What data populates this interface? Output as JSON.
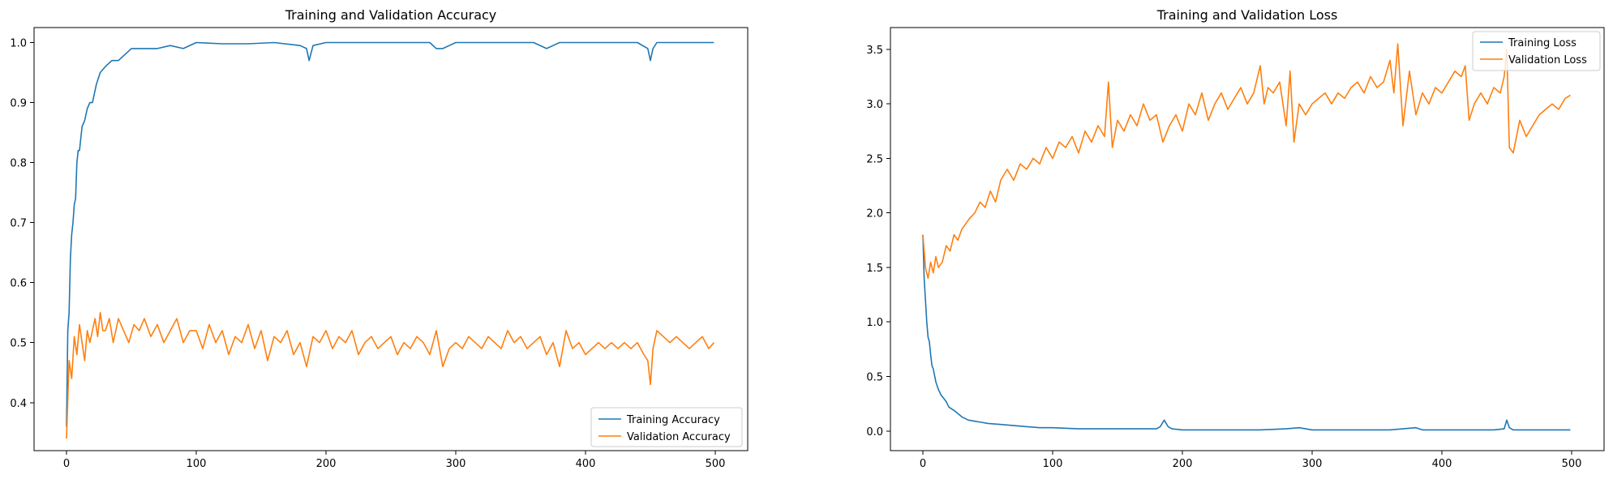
{
  "colors": {
    "series_1": "#1f77b4",
    "series_2": "#ff7f0e"
  },
  "chart_data": [
    {
      "type": "line",
      "title": "Training and Validation Accuracy",
      "xlabel": "",
      "ylabel": "",
      "xlim": [
        -25,
        525
      ],
      "ylim": [
        0.32,
        1.025
      ],
      "xticks": [
        0,
        100,
        200,
        300,
        400,
        500
      ],
      "yticks": [
        0.4,
        0.5,
        0.6,
        0.7,
        0.8,
        0.9,
        1.0
      ],
      "xtick_labels": [
        "0",
        "100",
        "200",
        "300",
        "400",
        "500"
      ],
      "ytick_labels": [
        "0.4",
        "0.5",
        "0.6",
        "0.7",
        "0.8",
        "0.9",
        "1.0"
      ],
      "grid": false,
      "legend_position": "lower right",
      "series": [
        {
          "name": "Training Accuracy",
          "color": "#1f77b4",
          "x": [
            0,
            1,
            2,
            3,
            4,
            5,
            6,
            7,
            8,
            9,
            10,
            12,
            14,
            16,
            18,
            20,
            23,
            26,
            30,
            35,
            40,
            45,
            50,
            55,
            60,
            70,
            80,
            90,
            100,
            120,
            140,
            160,
            180,
            185,
            187,
            190,
            200,
            220,
            240,
            260,
            280,
            285,
            290,
            295,
            300,
            320,
            340,
            360,
            370,
            375,
            380,
            400,
            420,
            440,
            448,
            450,
            452,
            455,
            460,
            480,
            499
          ],
          "y": [
            0.36,
            0.52,
            0.55,
            0.64,
            0.68,
            0.7,
            0.73,
            0.74,
            0.8,
            0.82,
            0.82,
            0.86,
            0.87,
            0.89,
            0.9,
            0.9,
            0.93,
            0.95,
            0.96,
            0.97,
            0.97,
            0.98,
            0.99,
            0.99,
            0.99,
            0.99,
            0.995,
            0.99,
            1.0,
            0.998,
            0.998,
            1.0,
            0.995,
            0.99,
            0.97,
            0.995,
            1.0,
            1.0,
            1.0,
            1.0,
            1.0,
            0.99,
            0.99,
            0.995,
            1.0,
            1.0,
            1.0,
            1.0,
            0.99,
            0.995,
            1.0,
            1.0,
            1.0,
            1.0,
            0.99,
            0.97,
            0.99,
            1.0,
            1.0,
            1.0,
            1.0
          ]
        },
        {
          "name": "Validation Accuracy",
          "color": "#ff7f0e",
          "x": [
            0,
            2,
            4,
            6,
            8,
            10,
            12,
            14,
            16,
            18,
            20,
            22,
            24,
            26,
            28,
            30,
            33,
            36,
            40,
            44,
            48,
            52,
            56,
            60,
            65,
            70,
            75,
            80,
            85,
            90,
            95,
            100,
            105,
            110,
            115,
            120,
            125,
            130,
            135,
            140,
            145,
            150,
            155,
            160,
            165,
            170,
            175,
            180,
            185,
            190,
            195,
            200,
            205,
            210,
            215,
            220,
            225,
            230,
            235,
            240,
            245,
            250,
            255,
            260,
            265,
            270,
            275,
            280,
            285,
            290,
            295,
            300,
            305,
            310,
            315,
            320,
            325,
            330,
            335,
            340,
            345,
            350,
            355,
            360,
            365,
            370,
            375,
            380,
            385,
            390,
            395,
            400,
            405,
            410,
            415,
            420,
            425,
            430,
            435,
            440,
            445,
            448,
            450,
            452,
            455,
            460,
            465,
            470,
            475,
            480,
            485,
            490,
            495,
            499
          ],
          "y": [
            0.34,
            0.47,
            0.44,
            0.51,
            0.48,
            0.53,
            0.5,
            0.47,
            0.52,
            0.5,
            0.52,
            0.54,
            0.51,
            0.55,
            0.52,
            0.52,
            0.54,
            0.5,
            0.54,
            0.52,
            0.5,
            0.53,
            0.52,
            0.54,
            0.51,
            0.53,
            0.5,
            0.52,
            0.54,
            0.5,
            0.52,
            0.52,
            0.49,
            0.53,
            0.5,
            0.52,
            0.48,
            0.51,
            0.5,
            0.53,
            0.49,
            0.52,
            0.47,
            0.51,
            0.5,
            0.52,
            0.48,
            0.5,
            0.46,
            0.51,
            0.5,
            0.52,
            0.49,
            0.51,
            0.5,
            0.52,
            0.48,
            0.5,
            0.51,
            0.49,
            0.5,
            0.51,
            0.48,
            0.5,
            0.49,
            0.51,
            0.5,
            0.48,
            0.52,
            0.46,
            0.49,
            0.5,
            0.49,
            0.51,
            0.5,
            0.49,
            0.51,
            0.5,
            0.49,
            0.52,
            0.5,
            0.51,
            0.49,
            0.5,
            0.51,
            0.48,
            0.5,
            0.46,
            0.52,
            0.49,
            0.5,
            0.48,
            0.49,
            0.5,
            0.49,
            0.5,
            0.49,
            0.5,
            0.49,
            0.5,
            0.48,
            0.47,
            0.43,
            0.49,
            0.52,
            0.51,
            0.5,
            0.51,
            0.5,
            0.49,
            0.5,
            0.51,
            0.49,
            0.5
          ]
        }
      ]
    },
    {
      "type": "line",
      "title": "Training and Validation Loss",
      "xlabel": "",
      "ylabel": "",
      "xlim": [
        -25,
        525
      ],
      "ylim": [
        -0.18,
        3.7
      ],
      "xticks": [
        0,
        100,
        200,
        300,
        400,
        500
      ],
      "yticks": [
        0.0,
        0.5,
        1.0,
        1.5,
        2.0,
        2.5,
        3.0,
        3.5
      ],
      "xtick_labels": [
        "0",
        "100",
        "200",
        "300",
        "400",
        "500"
      ],
      "ytick_labels": [
        "0.0",
        "0.5",
        "1.0",
        "1.5",
        "2.0",
        "2.5",
        "3.0",
        "3.5"
      ],
      "grid": false,
      "legend_position": "upper right",
      "series": [
        {
          "name": "Training Loss",
          "color": "#1f77b4",
          "x": [
            0,
            1,
            2,
            3,
            4,
            5,
            6,
            7,
            8,
            10,
            12,
            14,
            16,
            18,
            20,
            25,
            30,
            35,
            40,
            45,
            50,
            60,
            70,
            80,
            90,
            100,
            120,
            140,
            160,
            180,
            183,
            186,
            189,
            192,
            200,
            220,
            240,
            260,
            280,
            290,
            295,
            300,
            320,
            340,
            360,
            380,
            385,
            400,
            420,
            440,
            448,
            450,
            452,
            455,
            460,
            480,
            499
          ],
          "y": [
            1.8,
            1.4,
            1.2,
            1.0,
            0.86,
            0.82,
            0.7,
            0.6,
            0.57,
            0.45,
            0.38,
            0.33,
            0.3,
            0.27,
            0.22,
            0.18,
            0.13,
            0.1,
            0.09,
            0.08,
            0.07,
            0.06,
            0.05,
            0.04,
            0.03,
            0.03,
            0.02,
            0.02,
            0.02,
            0.02,
            0.04,
            0.1,
            0.04,
            0.02,
            0.01,
            0.01,
            0.01,
            0.01,
            0.02,
            0.03,
            0.02,
            0.01,
            0.01,
            0.01,
            0.01,
            0.03,
            0.01,
            0.01,
            0.01,
            0.01,
            0.02,
            0.1,
            0.03,
            0.01,
            0.01,
            0.01,
            0.01
          ]
        },
        {
          "name": "Validation Loss",
          "color": "#ff7f0e",
          "x": [
            0,
            2,
            4,
            6,
            8,
            10,
            12,
            15,
            18,
            21,
            24,
            27,
            30,
            33,
            36,
            40,
            44,
            48,
            52,
            56,
            60,
            65,
            70,
            75,
            80,
            85,
            90,
            95,
            100,
            105,
            110,
            115,
            120,
            125,
            130,
            135,
            140,
            143,
            146,
            150,
            155,
            160,
            165,
            170,
            175,
            180,
            185,
            190,
            195,
            200,
            205,
            210,
            215,
            220,
            225,
            230,
            235,
            240,
            245,
            250,
            255,
            260,
            263,
            266,
            270,
            275,
            280,
            283,
            286,
            290,
            295,
            300,
            305,
            310,
            315,
            320,
            325,
            330,
            335,
            340,
            345,
            350,
            355,
            360,
            363,
            366,
            370,
            375,
            380,
            385,
            390,
            395,
            400,
            405,
            410,
            415,
            418,
            421,
            425,
            430,
            435,
            440,
            445,
            448,
            450,
            452,
            455,
            460,
            465,
            470,
            475,
            480,
            485,
            490,
            495,
            499
          ],
          "y": [
            1.8,
            1.5,
            1.4,
            1.55,
            1.45,
            1.6,
            1.5,
            1.55,
            1.7,
            1.65,
            1.8,
            1.75,
            1.85,
            1.9,
            1.95,
            2.0,
            2.1,
            2.05,
            2.2,
            2.1,
            2.3,
            2.4,
            2.3,
            2.45,
            2.4,
            2.5,
            2.45,
            2.6,
            2.5,
            2.65,
            2.6,
            2.7,
            2.55,
            2.75,
            2.65,
            2.8,
            2.7,
            3.2,
            2.6,
            2.85,
            2.75,
            2.9,
            2.8,
            3.0,
            2.85,
            2.9,
            2.65,
            2.8,
            2.9,
            2.75,
            3.0,
            2.9,
            3.1,
            2.85,
            3.0,
            3.1,
            2.95,
            3.05,
            3.15,
            3.0,
            3.1,
            3.35,
            3.0,
            3.15,
            3.1,
            3.2,
            2.8,
            3.3,
            2.65,
            3.0,
            2.9,
            3.0,
            3.05,
            3.1,
            3.0,
            3.1,
            3.05,
            3.15,
            3.2,
            3.1,
            3.25,
            3.15,
            3.2,
            3.4,
            3.1,
            3.55,
            2.8,
            3.3,
            2.9,
            3.1,
            3.0,
            3.15,
            3.1,
            3.2,
            3.3,
            3.25,
            3.35,
            2.85,
            3.0,
            3.1,
            3.0,
            3.15,
            3.1,
            3.25,
            3.5,
            2.6,
            2.55,
            2.85,
            2.7,
            2.8,
            2.9,
            2.95,
            3.0,
            2.95,
            3.05,
            3.08
          ]
        }
      ]
    }
  ]
}
